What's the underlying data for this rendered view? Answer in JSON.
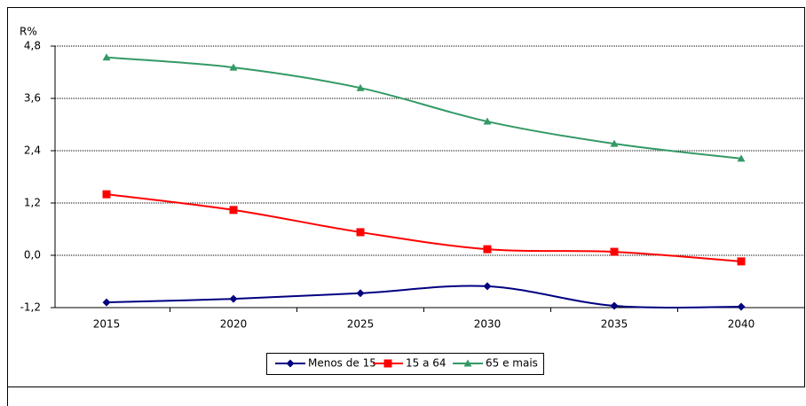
{
  "chart_data": {
    "type": "line",
    "y_axis_label": "R%",
    "categories": [
      "2015",
      "2020",
      "2025",
      "2030",
      "2035",
      "2040"
    ],
    "series": [
      {
        "name": "Menos de 15",
        "color": "#000080",
        "marker": "diamond",
        "values": [
          -1.08,
          -1.0,
          -0.87,
          -0.71,
          -1.16,
          -1.18
        ]
      },
      {
        "name": "15 a 64",
        "color": "#ff0000",
        "marker": "square",
        "values": [
          1.4,
          1.04,
          0.53,
          0.14,
          0.08,
          -0.14
        ]
      },
      {
        "name": "65 e mais",
        "color": "#339966",
        "marker": "triangle",
        "values": [
          4.54,
          4.31,
          3.84,
          3.07,
          2.56,
          2.22
        ]
      }
    ],
    "ylim": [
      -1.2,
      4.8
    ],
    "yticks": [
      {
        "value": -1.2,
        "label": "-1,2"
      },
      {
        "value": 0,
        "label": "0,0"
      },
      {
        "value": 1.2,
        "label": "1,2"
      },
      {
        "value": 2.4,
        "label": "2,4"
      },
      {
        "value": 3.6,
        "label": "3,6"
      },
      {
        "value": 4.8,
        "label": "4,8"
      }
    ],
    "grid": true,
    "legend": "bottom"
  }
}
